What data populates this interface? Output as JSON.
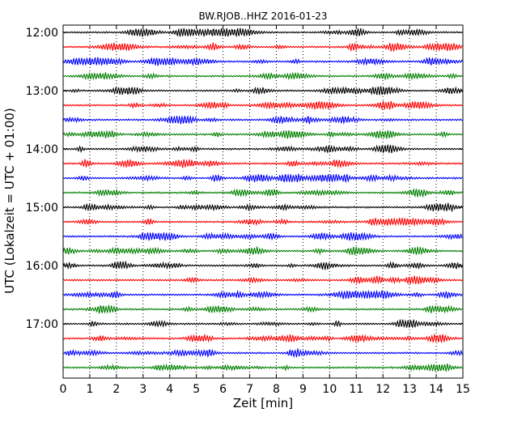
{
  "chart_data": {
    "type": "line",
    "title": "BW.RJOB..HHZ 2016-01-23",
    "xlabel": "Zeit  [min]",
    "ylabel": "UTC (Lokalzeit = UTC + 01:00)",
    "xlim": [
      0,
      15
    ],
    "x_ticks": [
      0,
      1,
      2,
      3,
      4,
      5,
      6,
      7,
      8,
      9,
      10,
      11,
      12,
      13,
      14,
      15
    ],
    "y_tick_labels": [
      "12:00",
      "13:00",
      "14:00",
      "15:00",
      "16:00",
      "17:00"
    ],
    "vertical_grid": "dotted",
    "series_colors": [
      "#000000",
      "#ff0000",
      "#0000ff",
      "#008000"
    ],
    "traces": [
      {
        "start": "12:00"
      },
      {
        "start": "12:15"
      },
      {
        "start": "12:30"
      },
      {
        "start": "12:45"
      },
      {
        "start": "13:00"
      },
      {
        "start": "13:15"
      },
      {
        "start": "13:30"
      },
      {
        "start": "13:45"
      },
      {
        "start": "14:00"
      },
      {
        "start": "14:15"
      },
      {
        "start": "14:30"
      },
      {
        "start": "14:45"
      },
      {
        "start": "15:00"
      },
      {
        "start": "15:15"
      },
      {
        "start": "15:30"
      },
      {
        "start": "15:45"
      },
      {
        "start": "16:00"
      },
      {
        "start": "16:15"
      },
      {
        "start": "16:30"
      },
      {
        "start": "16:45"
      },
      {
        "start": "17:00"
      },
      {
        "start": "17:15"
      },
      {
        "start": "17:30"
      },
      {
        "start": "17:45"
      }
    ]
  }
}
